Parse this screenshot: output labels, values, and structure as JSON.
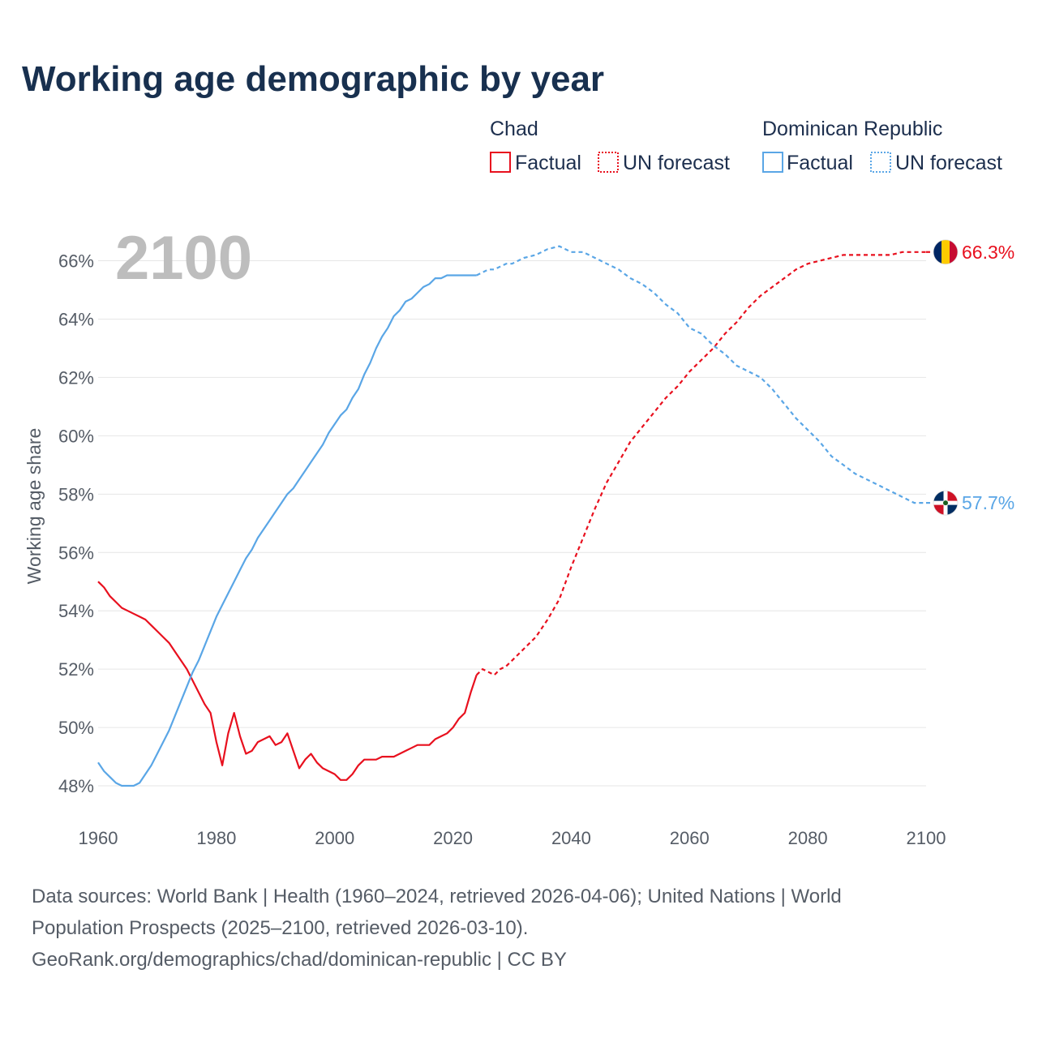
{
  "title": "Working age demographic by year",
  "legend": {
    "groups": [
      {
        "name": "Chad",
        "color": "#e8101e",
        "factual_label": "Factual",
        "forecast_label": "UN forecast"
      },
      {
        "name": "Dominican Republic",
        "color": "#5aa6e6",
        "factual_label": "Factual",
        "forecast_label": "UN forecast"
      }
    ]
  },
  "year_watermark": "2100",
  "source_lines": [
    "Data sources: World Bank | Health (1960–2024, retrieved 2026-04-06); United Nations | World",
    "Population Prospects (2025–2100, retrieved 2026-03-10).",
    "GeoRank.org/demographics/chad/dominican-republic | CC BY"
  ],
  "chart_data": {
    "type": "line",
    "title": "Working age demographic by year",
    "xlabel": "",
    "ylabel": "Working age share",
    "xlim": [
      1960,
      2100
    ],
    "ylim": [
      47,
      67.6
    ],
    "x_ticks": [
      1960,
      1980,
      2000,
      2020,
      2040,
      2060,
      2080,
      2100
    ],
    "y_ticks": [
      48,
      50,
      52,
      54,
      56,
      58,
      60,
      62,
      64,
      66
    ],
    "y_tick_suffix": "%",
    "factual_end_year": 2024,
    "series": [
      {
        "name": "Chad",
        "color": "#e8101e",
        "end_label": "66.3%",
        "x": [
          1960,
          1961,
          1962,
          1963,
          1964,
          1965,
          1966,
          1967,
          1968,
          1969,
          1970,
          1971,
          1972,
          1973,
          1974,
          1975,
          1976,
          1977,
          1978,
          1979,
          1980,
          1981,
          1982,
          1983,
          1984,
          1985,
          1986,
          1987,
          1988,
          1989,
          1990,
          1991,
          1992,
          1993,
          1994,
          1995,
          1996,
          1997,
          1998,
          1999,
          2000,
          2001,
          2002,
          2003,
          2004,
          2005,
          2006,
          2007,
          2008,
          2009,
          2010,
          2011,
          2012,
          2013,
          2014,
          2015,
          2016,
          2017,
          2018,
          2019,
          2020,
          2021,
          2022,
          2023,
          2024,
          2025,
          2026,
          2027,
          2028,
          2029,
          2030,
          2032,
          2034,
          2036,
          2038,
          2040,
          2042,
          2044,
          2046,
          2048,
          2050,
          2052,
          2054,
          2056,
          2058,
          2060,
          2062,
          2064,
          2066,
          2068,
          2070,
          2072,
          2074,
          2076,
          2078,
          2080,
          2082,
          2084,
          2086,
          2088,
          2090,
          2092,
          2094,
          2096,
          2098,
          2100
        ],
        "values": [
          55.0,
          54.8,
          54.5,
          54.3,
          54.1,
          54.0,
          53.9,
          53.8,
          53.7,
          53.5,
          53.3,
          53.1,
          52.9,
          52.6,
          52.3,
          52.0,
          51.6,
          51.2,
          50.8,
          50.5,
          49.5,
          48.7,
          49.8,
          50.5,
          49.7,
          49.1,
          49.2,
          49.5,
          49.6,
          49.7,
          49.4,
          49.5,
          49.8,
          49.2,
          48.6,
          48.9,
          49.1,
          48.8,
          48.6,
          48.5,
          48.4,
          48.2,
          48.2,
          48.4,
          48.7,
          48.9,
          48.9,
          48.9,
          49.0,
          49.0,
          49.0,
          49.1,
          49.2,
          49.3,
          49.4,
          49.4,
          49.4,
          49.6,
          49.7,
          49.8,
          50.0,
          50.3,
          50.5,
          51.2,
          51.8,
          52.0,
          51.9,
          51.8,
          52.0,
          52.1,
          52.3,
          52.7,
          53.1,
          53.7,
          54.4,
          55.5,
          56.5,
          57.5,
          58.4,
          59.1,
          59.8,
          60.3,
          60.8,
          61.3,
          61.7,
          62.2,
          62.6,
          63.0,
          63.5,
          63.9,
          64.4,
          64.8,
          65.1,
          65.4,
          65.7,
          65.9,
          66.0,
          66.1,
          66.2,
          66.2,
          66.2,
          66.2,
          66.2,
          66.3,
          66.3,
          66.3
        ]
      },
      {
        "name": "Dominican Republic",
        "color": "#5aa6e6",
        "end_label": "57.7%",
        "x": [
          1960,
          1961,
          1962,
          1963,
          1964,
          1965,
          1966,
          1967,
          1968,
          1969,
          1970,
          1971,
          1972,
          1973,
          1974,
          1975,
          1976,
          1977,
          1978,
          1979,
          1980,
          1981,
          1982,
          1983,
          1984,
          1985,
          1986,
          1987,
          1988,
          1989,
          1990,
          1991,
          1992,
          1993,
          1994,
          1995,
          1996,
          1997,
          1998,
          1999,
          2000,
          2001,
          2002,
          2003,
          2004,
          2005,
          2006,
          2007,
          2008,
          2009,
          2010,
          2011,
          2012,
          2013,
          2014,
          2015,
          2016,
          2017,
          2018,
          2019,
          2020,
          2021,
          2022,
          2023,
          2024,
          2025,
          2026,
          2027,
          2028,
          2029,
          2030,
          2032,
          2034,
          2036,
          2038,
          2040,
          2042,
          2044,
          2046,
          2048,
          2050,
          2052,
          2054,
          2056,
          2058,
          2060,
          2062,
          2064,
          2066,
          2068,
          2070,
          2072,
          2074,
          2076,
          2078,
          2080,
          2082,
          2084,
          2086,
          2088,
          2090,
          2092,
          2094,
          2096,
          2098,
          2100
        ],
        "values": [
          48.8,
          48.5,
          48.3,
          48.1,
          48.0,
          48.0,
          48.0,
          48.1,
          48.4,
          48.7,
          49.1,
          49.5,
          49.9,
          50.4,
          50.9,
          51.4,
          51.9,
          52.3,
          52.8,
          53.3,
          53.8,
          54.2,
          54.6,
          55.0,
          55.4,
          55.8,
          56.1,
          56.5,
          56.8,
          57.1,
          57.4,
          57.7,
          58.0,
          58.2,
          58.5,
          58.8,
          59.1,
          59.4,
          59.7,
          60.1,
          60.4,
          60.7,
          60.9,
          61.3,
          61.6,
          62.1,
          62.5,
          63.0,
          63.4,
          63.7,
          64.1,
          64.3,
          64.6,
          64.7,
          64.9,
          65.1,
          65.2,
          65.4,
          65.4,
          65.5,
          65.5,
          65.5,
          65.5,
          65.5,
          65.5,
          65.6,
          65.7,
          65.7,
          65.8,
          65.9,
          65.9,
          66.1,
          66.2,
          66.4,
          66.5,
          66.3,
          66.3,
          66.1,
          65.9,
          65.7,
          65.4,
          65.2,
          64.9,
          64.5,
          64.2,
          63.7,
          63.5,
          63.1,
          62.8,
          62.4,
          62.2,
          62.0,
          61.6,
          61.1,
          60.6,
          60.2,
          59.8,
          59.3,
          59.0,
          58.7,
          58.5,
          58.3,
          58.1,
          57.9,
          57.7,
          57.7
        ]
      }
    ]
  }
}
